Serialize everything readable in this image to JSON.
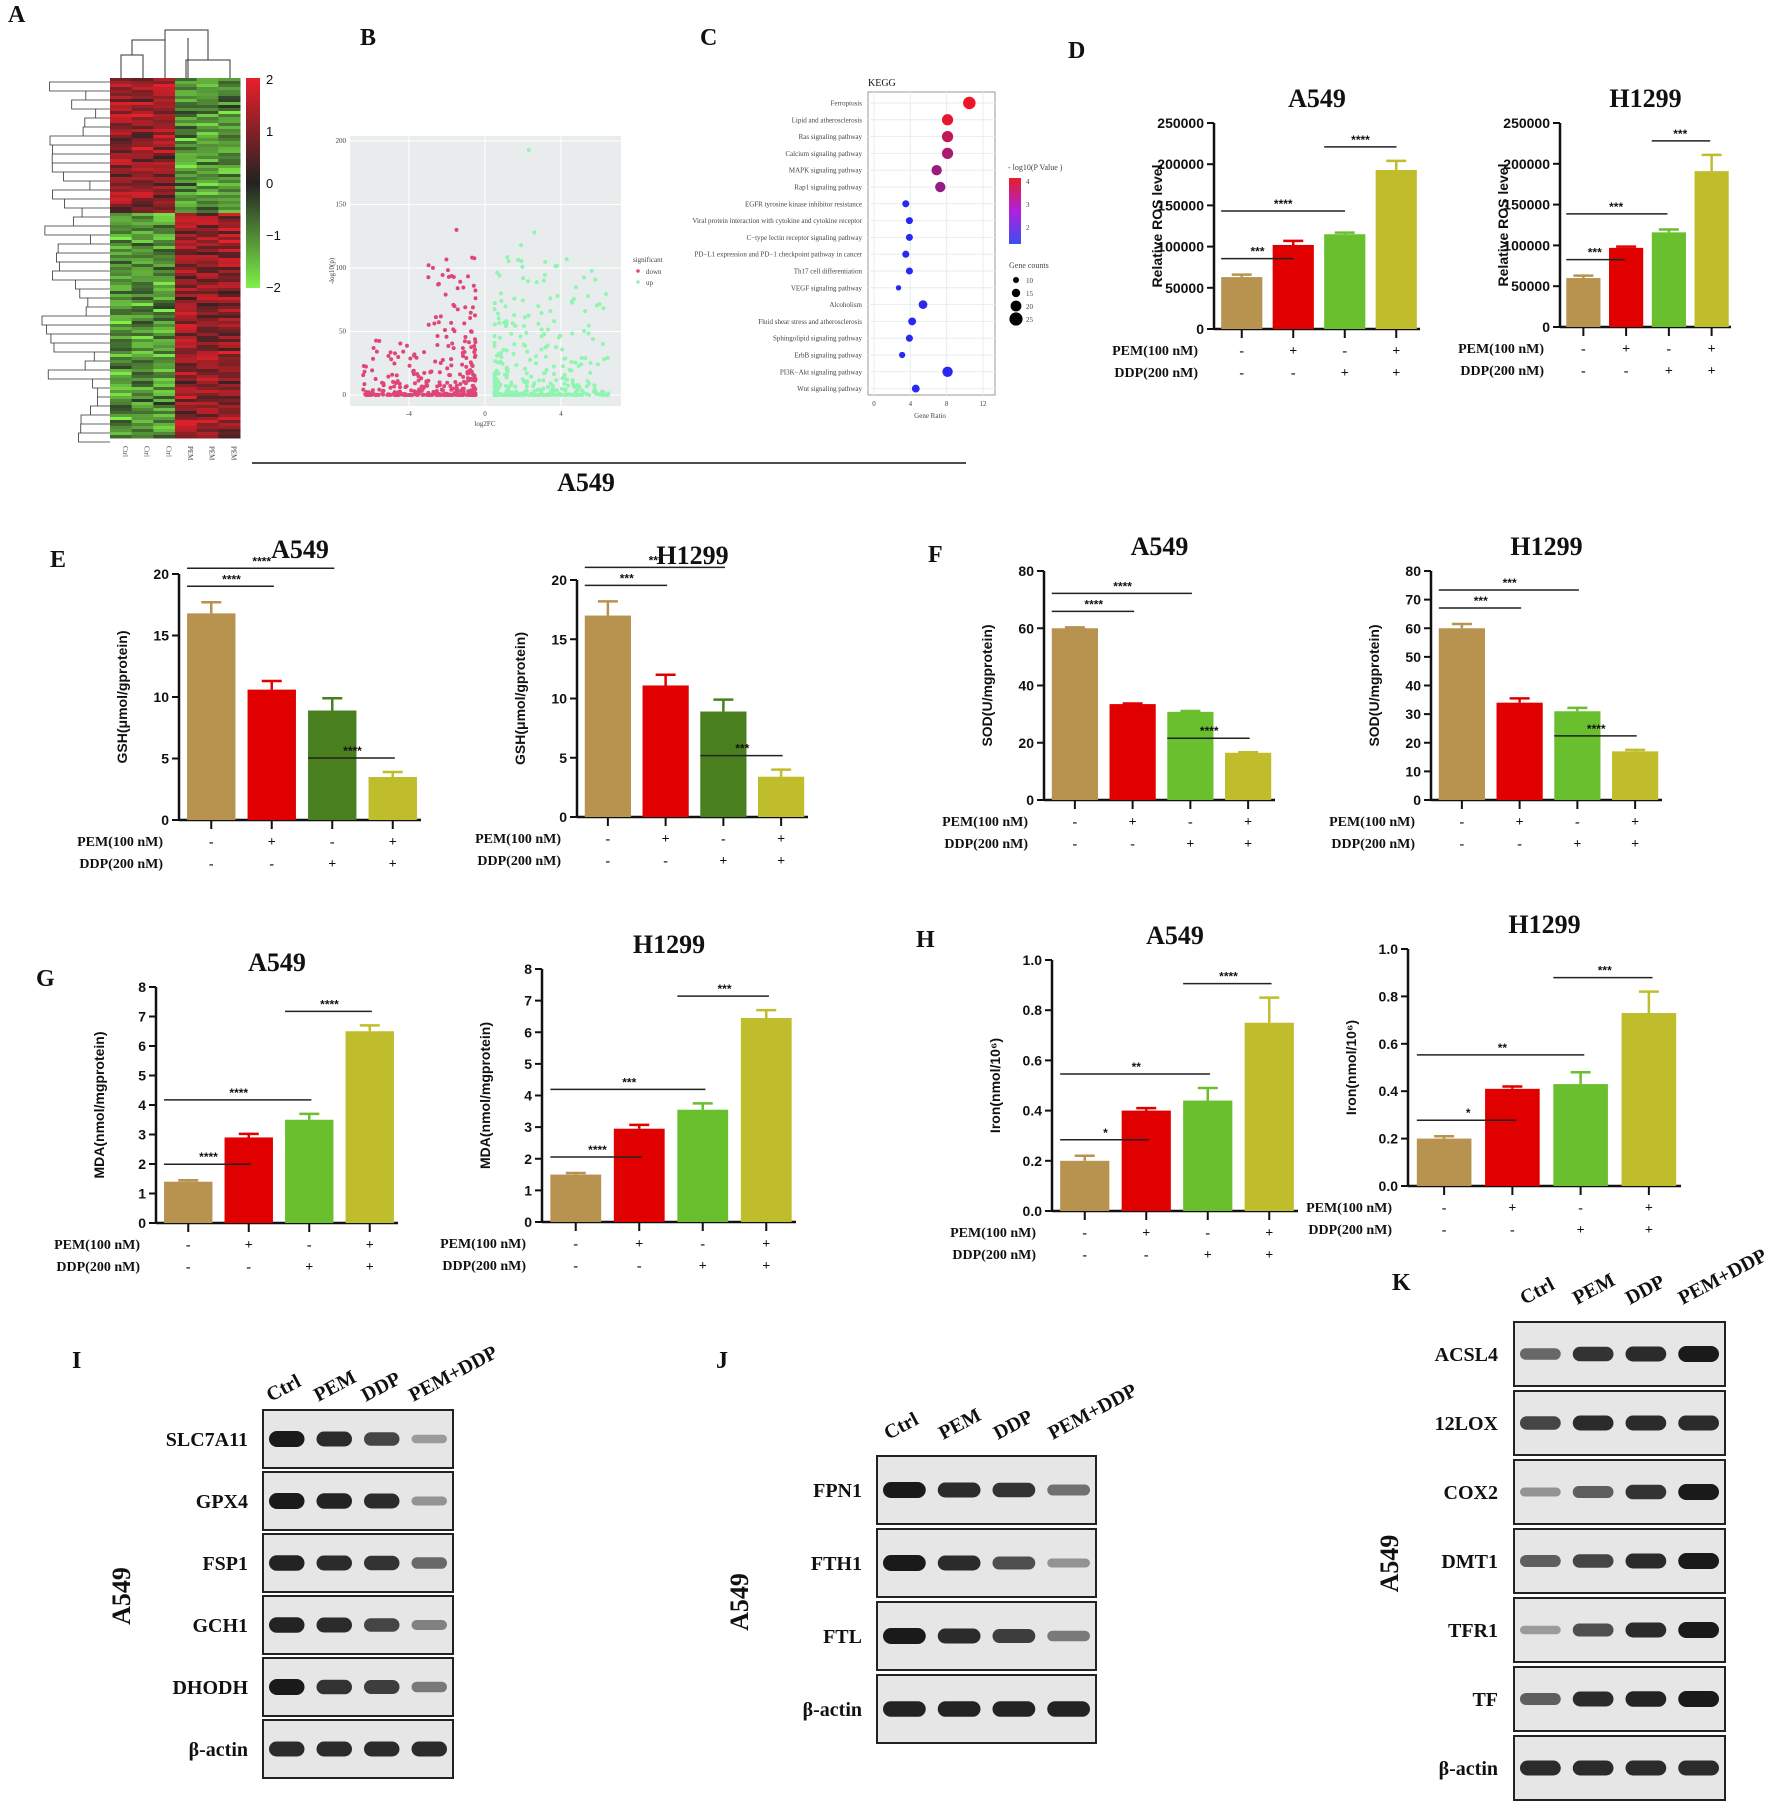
{
  "panel_labels": [
    "A",
    "B",
    "C",
    "D",
    "E",
    "F",
    "G",
    "H",
    "I",
    "J",
    "K"
  ],
  "section_label": "A549",
  "heatmap": {
    "columns": [
      "Ctrl",
      "Ctrl",
      "Ctrl",
      "PEM",
      "PEM",
      "PEM"
    ],
    "scale_ticks": [
      "2",
      "1",
      "0",
      "−1",
      "−2"
    ],
    "colors": {
      "high": "#e8202a",
      "mid": "#222222",
      "low": "#7ff04a"
    }
  },
  "volcano": {
    "xlabel": "log2FC",
    "ylabel": "-log10(p)",
    "yticks": [
      "0",
      "50",
      "100",
      "150",
      "200"
    ],
    "xticks": [
      "-4",
      "0",
      "4"
    ],
    "legend_title": "significant",
    "legend": [
      {
        "label": "down",
        "color": "#e0457a"
      },
      {
        "label": "up",
        "color": "#8ff5b0"
      }
    ]
  },
  "kegg": {
    "title": "KEGG",
    "xlabel": "Gene Ratio",
    "xticks": [
      "0",
      "4",
      "8",
      "12"
    ],
    "color_legend_title": "- log10(P Value )",
    "color_ticks": [
      "4",
      "3",
      "2"
    ],
    "size_legend_title": "Gene counts",
    "size_ticks": [
      "10",
      "15",
      "20",
      "25"
    ],
    "pathways": [
      {
        "name": "Ferroptosis",
        "ratio": 10.5,
        "count": 25,
        "p": 4.2
      },
      {
        "name": "Lipid and atherosclerosis",
        "ratio": 8.1,
        "count": 22,
        "p": 4.0
      },
      {
        "name": "Ras signaling pathway",
        "ratio": 8.1,
        "count": 22,
        "p": 3.5
      },
      {
        "name": "Calcium signaling pathway",
        "ratio": 8.1,
        "count": 22,
        "p": 3.2
      },
      {
        "name": "MAPK signaling pathway",
        "ratio": 6.9,
        "count": 20,
        "p": 3.0
      },
      {
        "name": "Rap1 signaling pathway",
        "ratio": 7.3,
        "count": 20,
        "p": 2.9
      },
      {
        "name": "EGFR tyrosine kinase inhibitor resistance",
        "ratio": 3.5,
        "count": 12,
        "p": 1.5
      },
      {
        "name": "Viral protein interaction with cytokine and cytokine receptor",
        "ratio": 3.9,
        "count": 12,
        "p": 1.5
      },
      {
        "name": "C−type lectin receptor signaling pathway",
        "ratio": 3.9,
        "count": 12,
        "p": 1.5
      },
      {
        "name": "PD−L1 expression and PD−1 checkpoint pathway in cancer",
        "ratio": 3.5,
        "count": 12,
        "p": 1.5
      },
      {
        "name": "Th17 cell differentiation",
        "ratio": 3.9,
        "count": 12,
        "p": 1.5
      },
      {
        "name": "VEGF signaling pathway",
        "ratio": 2.7,
        "count": 8,
        "p": 1.5
      },
      {
        "name": "Alcoholism",
        "ratio": 5.4,
        "count": 16,
        "p": 1.6
      },
      {
        "name": "Fluid shear stress and atherosclerosis",
        "ratio": 4.2,
        "count": 14,
        "p": 1.5
      },
      {
        "name": "Sphingolipid signaling pathway",
        "ratio": 3.9,
        "count": 12,
        "p": 1.5
      },
      {
        "name": "ErbB signaling pathway",
        "ratio": 3.1,
        "count": 10,
        "p": 1.5
      },
      {
        "name": "PI3K−Akt signaling pathway",
        "ratio": 8.1,
        "count": 20,
        "p": 1.5
      },
      {
        "name": "Wnt signaling pathway",
        "ratio": 4.6,
        "count": 14,
        "p": 1.5
      }
    ]
  },
  "conditions": {
    "pem_label": "PEM(100 nM)",
    "ddp_label": "DDP(200 nM)",
    "pem": [
      "-",
      "+",
      "-",
      "+"
    ],
    "ddp": [
      "-",
      "-",
      "+",
      "+"
    ]
  },
  "colors": {
    "ctrl": "#b8924f",
    "pem": "#e00000",
    "ddp": "#6abf2e",
    "ddp_dark": "#4a7f1f",
    "combo": "#bfbd2c"
  },
  "chart_data": [
    {
      "type": "bar",
      "panel": "D",
      "title": "A549",
      "ylabel": "Relative ROS level",
      "ylim": [
        0,
        250000
      ],
      "yticks": [
        "0",
        "50000",
        "100000",
        "150000",
        "200000",
        "250000"
      ],
      "values": [
        63000,
        102000,
        115000,
        193000
      ],
      "errors": [
        3000,
        5000,
        2000,
        11000
      ],
      "sig": [
        {
          "a": 0,
          "b": 1,
          "label": "***"
        },
        {
          "a": 0,
          "b": 2,
          "label": "****"
        },
        {
          "a": 2,
          "b": 3,
          "label": "****"
        }
      ]
    },
    {
      "type": "bar",
      "panel": "D",
      "title": "H1299",
      "ylabel": "Relative ROS level",
      "ylim": [
        0,
        250000
      ],
      "yticks": [
        "0",
        "50000",
        "100000",
        "150000",
        "200000",
        "250000"
      ],
      "values": [
        60000,
        97000,
        116000,
        191000
      ],
      "errors": [
        3000,
        1500,
        3500,
        20000
      ],
      "sig": [
        {
          "a": 0,
          "b": 1,
          "label": "***"
        },
        {
          "a": 0,
          "b": 2,
          "label": "***"
        },
        {
          "a": 2,
          "b": 3,
          "label": "***"
        }
      ]
    },
    {
      "type": "bar",
      "panel": "E",
      "title": "A549",
      "ylabel": "GSH(μmol/gprotein)",
      "ylim": [
        0,
        20
      ],
      "yticks": [
        "0",
        "5",
        "10",
        "15",
        "20"
      ],
      "values": [
        16.8,
        10.6,
        8.9,
        3.5
      ],
      "errors": [
        0.9,
        0.7,
        1.0,
        0.4
      ],
      "sig": [
        {
          "a": 0,
          "b": 1,
          "label": "****"
        },
        {
          "a": 0,
          "b": 2,
          "label": "****"
        },
        {
          "a": 2,
          "b": 3,
          "label": "****"
        }
      ]
    },
    {
      "type": "bar",
      "panel": "E",
      "title": "H1299",
      "ylabel": "GSH(μmol/gprotein)",
      "ylim": [
        0,
        20
      ],
      "yticks": [
        "0",
        "5",
        "10",
        "15",
        "20"
      ],
      "values": [
        17.0,
        11.1,
        8.9,
        3.4
      ],
      "errors": [
        1.2,
        0.9,
        1.0,
        0.6
      ],
      "sig": [
        {
          "a": 0,
          "b": 1,
          "label": "***"
        },
        {
          "a": 0,
          "b": 2,
          "label": "***"
        },
        {
          "a": 2,
          "b": 3,
          "label": "***"
        }
      ]
    },
    {
      "type": "bar",
      "panel": "F",
      "title": "A549",
      "ylabel": "SOD(U/mgprotein)",
      "ylim": [
        0,
        80
      ],
      "yticks": [
        "0",
        "20",
        "40",
        "60",
        "80"
      ],
      "values": [
        60,
        33.5,
        30.8,
        16.5
      ],
      "errors": [
        0.3,
        0.2,
        0.3,
        0.2
      ],
      "sig": [
        {
          "a": 0,
          "b": 1,
          "label": "****"
        },
        {
          "a": 0,
          "b": 2,
          "label": "****"
        },
        {
          "a": 2,
          "b": 3,
          "label": "****"
        }
      ]
    },
    {
      "type": "bar",
      "panel": "F",
      "title": "H1299",
      "ylabel": "SOD(U/mgprotein)",
      "ylim": [
        0,
        80
      ],
      "yticks": [
        "0",
        "10",
        "20",
        "30",
        "40",
        "50",
        "60",
        "70",
        "80"
      ],
      "values": [
        60,
        34,
        31,
        17
      ],
      "errors": [
        1.5,
        1.5,
        1.2,
        0.5
      ],
      "sig": [
        {
          "a": 0,
          "b": 1,
          "label": "***"
        },
        {
          "a": 0,
          "b": 2,
          "label": "***"
        },
        {
          "a": 2,
          "b": 3,
          "label": "****"
        }
      ]
    },
    {
      "type": "bar",
      "panel": "G",
      "title": "A549",
      "ylabel": "MDA(nmol/mgprotein)",
      "ylim": [
        0,
        8
      ],
      "yticks": [
        "0",
        "1",
        "2",
        "3",
        "4",
        "5",
        "6",
        "7",
        "8"
      ],
      "values": [
        1.4,
        2.9,
        3.5,
        6.5
      ],
      "errors": [
        0.05,
        0.12,
        0.2,
        0.2
      ],
      "sig": [
        {
          "a": 0,
          "b": 1,
          "label": "****"
        },
        {
          "a": 0,
          "b": 2,
          "label": "****"
        },
        {
          "a": 2,
          "b": 3,
          "label": "****"
        }
      ]
    },
    {
      "type": "bar",
      "panel": "G",
      "title": "H1299",
      "ylabel": "MDA(nmol/mgprotein)",
      "ylim": [
        0,
        8
      ],
      "yticks": [
        "0",
        "1",
        "2",
        "3",
        "4",
        "5",
        "6",
        "7",
        "8"
      ],
      "values": [
        1.5,
        2.95,
        3.55,
        6.45
      ],
      "errors": [
        0.05,
        0.12,
        0.2,
        0.25
      ],
      "sig": [
        {
          "a": 0,
          "b": 1,
          "label": "****"
        },
        {
          "a": 0,
          "b": 2,
          "label": "***"
        },
        {
          "a": 2,
          "b": 3,
          "label": "***"
        }
      ]
    },
    {
      "type": "bar",
      "panel": "H",
      "title": "A549",
      "ylabel": "Iron(nmol/10⁶)",
      "ylim": [
        0,
        1.0
      ],
      "yticks": [
        "0.0",
        "0.2",
        "0.4",
        "0.6",
        "0.8",
        "1.0"
      ],
      "values": [
        0.2,
        0.4,
        0.44,
        0.75
      ],
      "errors": [
        0.02,
        0.01,
        0.05,
        0.1
      ],
      "sig": [
        {
          "a": 0,
          "b": 1,
          "label": "*"
        },
        {
          "a": 0,
          "b": 2,
          "label": "**"
        },
        {
          "a": 2,
          "b": 3,
          "label": "****"
        }
      ]
    },
    {
      "type": "bar",
      "panel": "H",
      "title": "H1299",
      "ylabel": "Iron(nmol/10⁶)",
      "ylim": [
        0,
        1.0
      ],
      "yticks": [
        "0.0",
        "0.2",
        "0.4",
        "0.6",
        "0.8",
        "1.0"
      ],
      "values": [
        0.2,
        0.41,
        0.43,
        0.73
      ],
      "errors": [
        0.01,
        0.01,
        0.05,
        0.09
      ],
      "sig": [
        {
          "a": 0,
          "b": 1,
          "label": "*"
        },
        {
          "a": 0,
          "b": 2,
          "label": "**"
        },
        {
          "a": 2,
          "b": 3,
          "label": "***"
        }
      ]
    }
  ],
  "blots": [
    {
      "panel": "I",
      "cell": "A549",
      "lanes": [
        "Ctrl",
        "PEM",
        "DDP",
        "PEM+DDP"
      ],
      "rows": [
        {
          "protein": "SLC7A11",
          "intensity": [
            1,
            0.9,
            0.75,
            0.25
          ]
        },
        {
          "protein": "GPX4",
          "intensity": [
            1,
            0.95,
            0.9,
            0.3
          ]
        },
        {
          "protein": "FSP1",
          "intensity": [
            0.95,
            0.9,
            0.85,
            0.55
          ]
        },
        {
          "protein": "GCH1",
          "intensity": [
            0.95,
            0.9,
            0.75,
            0.4
          ]
        },
        {
          "protein": "DHODH",
          "intensity": [
            1,
            0.85,
            0.8,
            0.45
          ]
        },
        {
          "protein": "β-actin",
          "intensity": [
            0.9,
            0.9,
            0.9,
            0.9
          ]
        }
      ]
    },
    {
      "panel": "J",
      "cell": "A549",
      "lanes": [
        "Ctrl",
        "PEM",
        "DDP",
        "PEM+DDP"
      ],
      "rows": [
        {
          "protein": "FPN1",
          "intensity": [
            1,
            0.9,
            0.85,
            0.5
          ]
        },
        {
          "protein": "FTH1",
          "intensity": [
            1,
            0.9,
            0.7,
            0.3
          ]
        },
        {
          "protein": "FTL",
          "intensity": [
            1,
            0.9,
            0.8,
            0.45
          ]
        },
        {
          "protein": "β-actin",
          "intensity": [
            0.95,
            0.95,
            0.95,
            0.95
          ]
        }
      ]
    },
    {
      "panel": "K",
      "cell": "A549",
      "lanes": [
        "Ctrl",
        "PEM",
        "DDP",
        "PEM+DDP"
      ],
      "rows": [
        {
          "protein": "ACSL4",
          "intensity": [
            0.55,
            0.85,
            0.9,
            1
          ]
        },
        {
          "protein": "12LOX",
          "intensity": [
            0.75,
            0.9,
            0.9,
            0.9
          ]
        },
        {
          "protein": "COX2",
          "intensity": [
            0.3,
            0.6,
            0.85,
            1
          ]
        },
        {
          "protein": "DMT1",
          "intensity": [
            0.6,
            0.75,
            0.9,
            1
          ]
        },
        {
          "protein": "TFR1",
          "intensity": [
            0.25,
            0.7,
            0.9,
            1
          ]
        },
        {
          "protein": "TF",
          "intensity": [
            0.6,
            0.9,
            0.95,
            1
          ]
        },
        {
          "protein": "β-actin",
          "intensity": [
            0.9,
            0.9,
            0.9,
            0.9
          ]
        }
      ]
    }
  ]
}
